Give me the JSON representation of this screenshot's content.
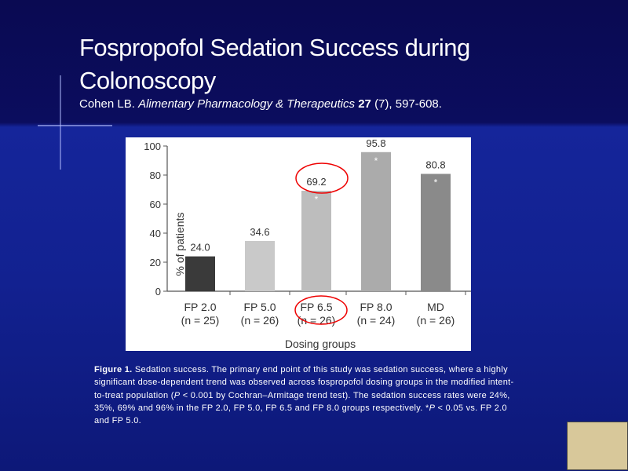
{
  "slide": {
    "title": "Fospropofol Sedation Success during Colonoscopy",
    "citation": {
      "author": "Cohen LB.",
      "journal": "Alimentary Pharmacology & Therapeutics",
      "volume": "27",
      "rest": "(7), 597-608."
    },
    "caption": {
      "label": "Figure 1.",
      "parts": [
        "Sedation success. The primary end point of this study was sedation success, where a highly significant dose-dependent trend was observed across fospropofol dosing groups in the modified intent-to-treat population (",
        "P",
        " < 0.001 by Cochran–Armitage trend test). The sedation success rates were 24%, 35%, 69% and 96% in the FP 2.0, FP 5.0, FP 6.5 and FP 8.0 groups respectively. *",
        "P",
        " < 0.05 vs. FP 2.0 and FP 5.0."
      ]
    }
  },
  "chart_data": {
    "type": "bar",
    "y_label": "% of patients",
    "x_label": "Dosing groups",
    "categories": [
      "FP 2.0",
      "FP 5.0",
      "FP 6.5",
      "FP 8.0",
      "MD"
    ],
    "sublabels": [
      "(n = 25)",
      "(n = 26)",
      "(n = 26)",
      "(n = 24)",
      "(n = 26)"
    ],
    "values": [
      24.0,
      34.6,
      69.2,
      95.8,
      80.8
    ],
    "value_labels": [
      "24.0",
      "34.6",
      "69.2",
      "95.8",
      "80.8"
    ],
    "markers": [
      null,
      null,
      "*",
      "*",
      "*"
    ],
    "colors": [
      "#3a3a3a",
      "#c9c9c9",
      "#bdbdbd",
      "#ababab",
      "#8a8a8a"
    ],
    "ylim": [
      0,
      100
    ],
    "yticks": [
      0,
      20,
      40,
      60,
      80,
      100
    ],
    "grid": false
  }
}
